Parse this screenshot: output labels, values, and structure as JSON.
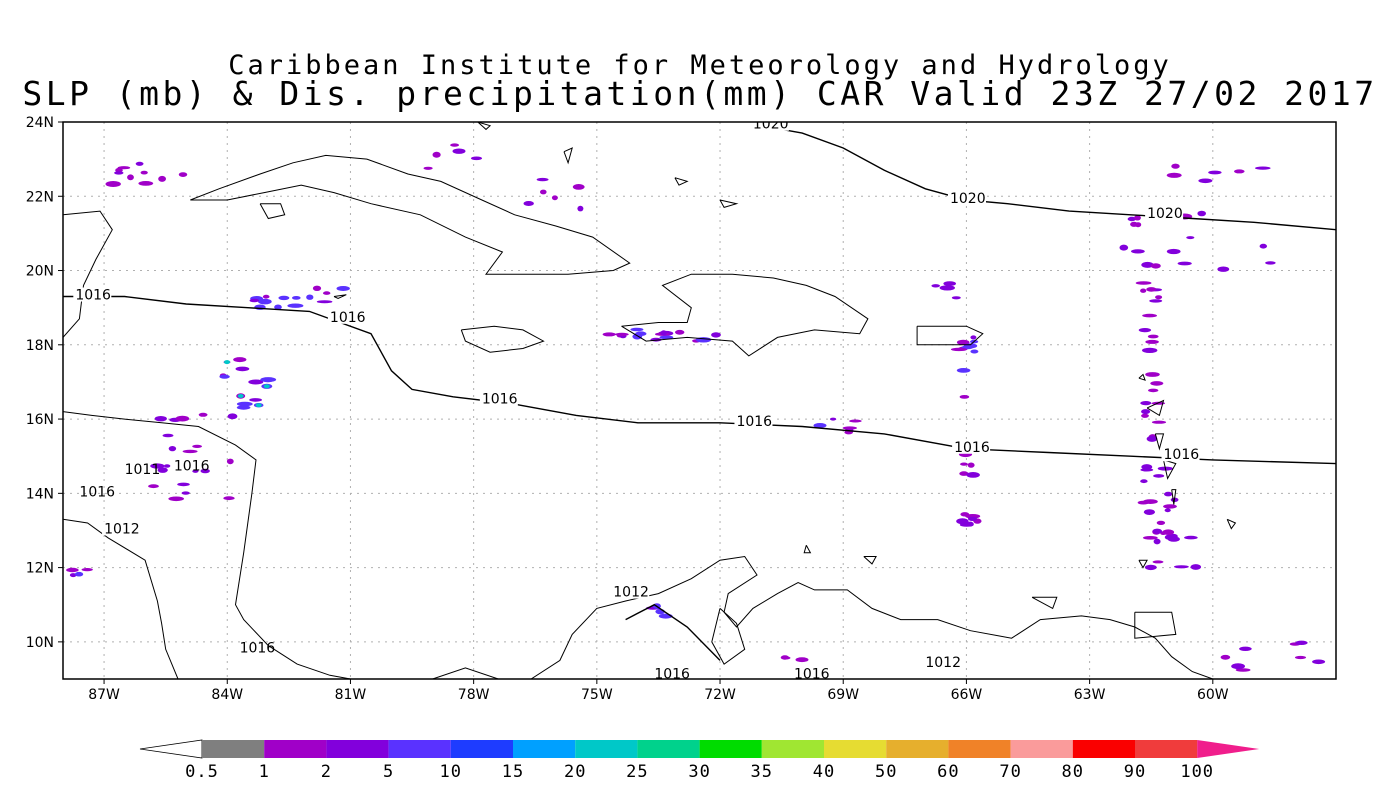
{
  "title": {
    "line1": "Caribbean Institute for Meteorology and Hydrology",
    "line2": "SLP (mb) & Dis. precipitation(mm) CAR Valid 23Z 27/02 2017"
  },
  "map": {
    "lon_range": [
      -88.0,
      -57.0
    ],
    "lat_range": [
      9.0,
      24.0
    ],
    "lat_ticks": [
      {
        "value": 24,
        "label": "24N"
      },
      {
        "value": 22,
        "label": "22N"
      },
      {
        "value": 20,
        "label": "20N"
      },
      {
        "value": 18,
        "label": "18N"
      },
      {
        "value": 16,
        "label": "16N"
      },
      {
        "value": 14,
        "label": "14N"
      },
      {
        "value": 12,
        "label": "12N"
      },
      {
        "value": 10,
        "label": "10N"
      }
    ],
    "lon_ticks": [
      {
        "value": -87,
        "label": "87W"
      },
      {
        "value": -84,
        "label": "84W"
      },
      {
        "value": -81,
        "label": "81W"
      },
      {
        "value": -78,
        "label": "78W"
      },
      {
        "value": -75,
        "label": "75W"
      },
      {
        "value": -72,
        "label": "72W"
      },
      {
        "value": -69,
        "label": "69W"
      },
      {
        "value": -66,
        "label": "66W"
      },
      {
        "value": -63,
        "label": "63W"
      },
      {
        "value": -60,
        "label": "60W"
      }
    ],
    "grid": true,
    "isobars": [
      {
        "label": "1020",
        "points": [
          [
            -71.0,
            23.9
          ],
          [
            -70.0,
            23.7
          ],
          [
            -69.0,
            23.3
          ],
          [
            -68.0,
            22.7
          ],
          [
            -67.0,
            22.2
          ],
          [
            -66.0,
            21.9
          ],
          [
            -65.0,
            21.8
          ],
          [
            -63.5,
            21.6
          ],
          [
            -62.0,
            21.5
          ],
          [
            -60.5,
            21.4
          ],
          [
            -59.0,
            21.3
          ],
          [
            -57.0,
            21.1
          ]
        ],
        "labels": [
          {
            "lon": -71.2,
            "lat": 23.9,
            "text": "1020"
          },
          {
            "lon": -66.4,
            "lat": 21.9,
            "text": "1020"
          },
          {
            "lon": -61.6,
            "lat": 21.5,
            "text": "1020"
          }
        ]
      },
      {
        "label": "1016",
        "points": [
          [
            -88.0,
            19.3
          ],
          [
            -86.5,
            19.3
          ],
          [
            -85.0,
            19.1
          ],
          [
            -83.5,
            19.0
          ],
          [
            -82.0,
            18.9
          ],
          [
            -80.5,
            18.3
          ],
          [
            -80.0,
            17.3
          ],
          [
            -79.5,
            16.8
          ],
          [
            -78.5,
            16.6
          ],
          [
            -77.0,
            16.4
          ],
          [
            -75.5,
            16.1
          ],
          [
            -74.0,
            15.9
          ],
          [
            -72.0,
            15.9
          ],
          [
            -70.0,
            15.8
          ],
          [
            -68.0,
            15.6
          ],
          [
            -66.0,
            15.2
          ],
          [
            -64.0,
            15.1
          ],
          [
            -62.0,
            15.0
          ],
          [
            -60.0,
            14.9
          ],
          [
            -57.0,
            14.8
          ]
        ],
        "labels": [
          {
            "lon": -87.7,
            "lat": 19.3,
            "text": "1016"
          },
          {
            "lon": -81.5,
            "lat": 18.7,
            "text": "1016"
          },
          {
            "lon": -77.8,
            "lat": 16.5,
            "text": "1016"
          },
          {
            "lon": -71.6,
            "lat": 15.9,
            "text": "1016"
          },
          {
            "lon": -66.3,
            "lat": 15.2,
            "text": "1016"
          },
          {
            "lon": -61.2,
            "lat": 15.0,
            "text": "1016"
          }
        ]
      },
      {
        "label": "1012",
        "points": [
          [
            -74.3,
            10.6
          ],
          [
            -73.6,
            11.0
          ],
          [
            -72.8,
            10.4
          ],
          [
            -72.0,
            9.5
          ]
        ],
        "labels": [
          {
            "lon": -74.6,
            "lat": 11.3,
            "text": "1012"
          },
          {
            "lon": -87.0,
            "lat": 13.0,
            "text": "1012"
          },
          {
            "lon": -67.0,
            "lat": 9.4,
            "text": "1012"
          }
        ]
      }
    ],
    "extra_labels": [
      {
        "lon": -86.5,
        "lat": 14.6,
        "text": "1011"
      },
      {
        "lon": -85.3,
        "lat": 14.7,
        "text": "1016"
      },
      {
        "lon": -87.6,
        "lat": 14.0,
        "text": "1016"
      },
      {
        "lon": -83.7,
        "lat": 9.8,
        "text": "1016"
      },
      {
        "lon": -73.6,
        "lat": 9.1,
        "text": "1016"
      },
      {
        "lon": -70.2,
        "lat": 9.1,
        "text": "1016"
      }
    ]
  },
  "colorbar": {
    "colors": [
      "#ffffff",
      "#7f7f7f",
      "#a000c8",
      "#8200dc",
      "#5a32ff",
      "#1e3cff",
      "#00a0ff",
      "#00c8c8",
      "#00d28c",
      "#00dc00",
      "#a0e632",
      "#e6dc32",
      "#e6af2d",
      "#f08228",
      "#fa9b9b",
      "#fa0000",
      "#f03c3c",
      "#f01e8c"
    ],
    "labels": [
      "0.5",
      "1",
      "2",
      "5",
      "10",
      "15",
      "20",
      "25",
      "30",
      "35",
      "40",
      "50",
      "60",
      "70",
      "80",
      "90",
      "100"
    ]
  },
  "precip_colors": {
    "light": "#a000c8",
    "mid": "#8200dc",
    "heavy": "#5a32ff",
    "core": "#00c8c8",
    "peak": "#a0e632"
  }
}
